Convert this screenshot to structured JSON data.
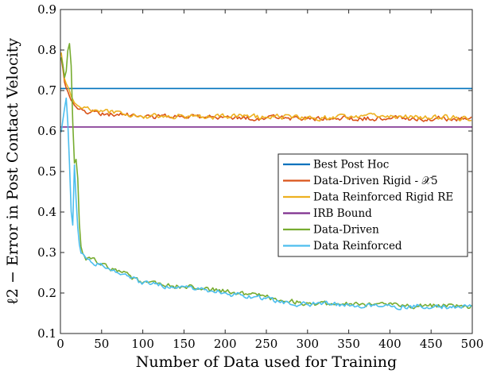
{
  "chart_data": {
    "type": "line",
    "xlabel": "Number of Data used for Training",
    "ylabel": "ℓ2 − Error in Post Contact Velocity",
    "xlim": [
      0,
      500
    ],
    "ylim": [
      0.1,
      0.9
    ],
    "xticks": [
      "0",
      "50",
      "100",
      "150",
      "200",
      "250",
      "300",
      "350",
      "400",
      "450",
      "500"
    ],
    "yticks": [
      "0.1",
      "0.2",
      "0.3",
      "0.4",
      "0.5",
      "0.6",
      "0.7",
      "0.8",
      "0.9"
    ],
    "grid": false,
    "legend_position": "center-right",
    "series": [
      {
        "name": "Best Post Hoc",
        "color": "#0072BD",
        "style": "constant",
        "x": [
          0,
          500
        ],
        "y": [
          0.705,
          0.705
        ]
      },
      {
        "name": "Data-Driven Rigid - 𝒳5",
        "color": "#D95319",
        "style": "noisy",
        "x": [
          1,
          5,
          10,
          15,
          20,
          25,
          30,
          40,
          50,
          60,
          80,
          100,
          120,
          150,
          200,
          250,
          300,
          350,
          400,
          450,
          500
        ],
        "y": [
          0.78,
          0.72,
          0.69,
          0.67,
          0.66,
          0.655,
          0.65,
          0.65,
          0.645,
          0.642,
          0.64,
          0.637,
          0.635,
          0.635,
          0.633,
          0.632,
          0.632,
          0.631,
          0.631,
          0.631,
          0.63
        ]
      },
      {
        "name": "Data Reinforced Rigid RE",
        "color": "#EDB120",
        "style": "noisy",
        "x": [
          1,
          5,
          10,
          15,
          20,
          25,
          30,
          40,
          50,
          60,
          80,
          100,
          120,
          150,
          200,
          250,
          300,
          350,
          400,
          450,
          500
        ],
        "y": [
          0.79,
          0.73,
          0.7,
          0.675,
          0.665,
          0.66,
          0.66,
          0.655,
          0.65,
          0.645,
          0.64,
          0.638,
          0.636,
          0.636,
          0.635,
          0.634,
          0.634,
          0.634,
          0.634,
          0.633,
          0.632
        ]
      },
      {
        "name": "IRB Bound",
        "color": "#7E2F8E",
        "style": "constant",
        "x": [
          0,
          500
        ],
        "y": [
          0.61,
          0.61
        ]
      },
      {
        "name": "Data-Driven",
        "color": "#77AC30",
        "style": "noisy",
        "x": [
          1,
          3,
          6,
          9,
          12,
          14,
          16,
          18,
          20,
          22,
          25,
          30,
          40,
          50,
          60,
          80,
          100,
          120,
          150,
          180,
          200,
          230,
          250,
          270,
          280,
          300,
          350,
          400,
          450,
          500
        ],
        "y": [
          0.78,
          0.76,
          0.72,
          0.8,
          0.82,
          0.7,
          0.55,
          0.5,
          0.56,
          0.4,
          0.31,
          0.285,
          0.28,
          0.275,
          0.26,
          0.245,
          0.225,
          0.22,
          0.215,
          0.21,
          0.205,
          0.195,
          0.19,
          0.18,
          0.18,
          0.175,
          0.172,
          0.17,
          0.168,
          0.167
        ]
      },
      {
        "name": "Data Reinforced",
        "color": "#4DBEEE",
        "style": "noisy",
        "x": [
          1,
          3,
          5,
          7,
          9,
          11,
          13,
          15,
          17,
          19,
          22,
          25,
          30,
          40,
          50,
          60,
          80,
          100,
          120,
          150,
          180,
          200,
          230,
          250,
          270,
          280,
          300,
          350,
          400,
          450,
          500
        ],
        "y": [
          0.6,
          0.63,
          0.66,
          0.68,
          0.62,
          0.52,
          0.4,
          0.37,
          0.52,
          0.43,
          0.33,
          0.3,
          0.285,
          0.275,
          0.27,
          0.26,
          0.24,
          0.225,
          0.22,
          0.215,
          0.208,
          0.2,
          0.19,
          0.187,
          0.178,
          0.175,
          0.173,
          0.17,
          0.168,
          0.167,
          0.166
        ]
      }
    ]
  }
}
